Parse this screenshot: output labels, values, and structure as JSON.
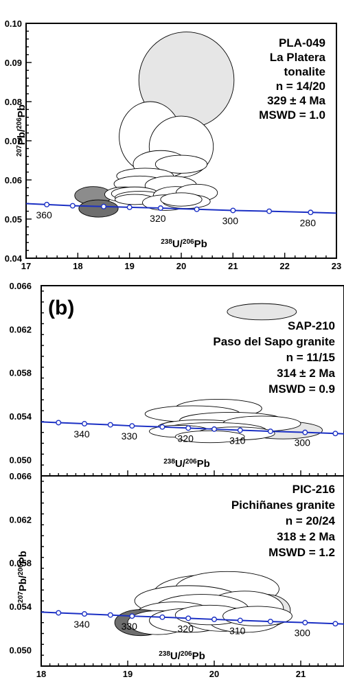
{
  "chart_data": [
    {
      "type": "scatter",
      "id": "top",
      "annotation": [
        "PLA-049",
        "La Platera",
        "tonalite",
        "n = 14/20",
        "329 ± 4 Ma",
        "MSWD = 1.0"
      ],
      "xlabel": "238U/206Pb",
      "ylabel": "207Pb/206Pb",
      "xlim": [
        17,
        23
      ],
      "ylim": [
        0.04,
        0.1
      ],
      "x_ticks": [
        "17",
        "18",
        "19",
        "20",
        "21",
        "22",
        "23"
      ],
      "y_ticks": [
        "0.04",
        "0.05",
        "0.06",
        "0.07",
        "0.08",
        "0.09",
        "0.10"
      ],
      "concordia_color": "#1a2fc4",
      "concordia_points": [
        {
          "x": 17.4,
          "y": 0.0537,
          "label": "360"
        },
        {
          "x": 17.9,
          "y": 0.0534,
          "label": ""
        },
        {
          "x": 18.5,
          "y": 0.0532,
          "label": ""
        },
        {
          "x": 19.0,
          "y": 0.053,
          "label": ""
        },
        {
          "x": 19.6,
          "y": 0.0528,
          "label": "320"
        },
        {
          "x": 20.3,
          "y": 0.0525,
          "label": ""
        },
        {
          "x": 21.0,
          "y": 0.0522,
          "label": "300"
        },
        {
          "x": 21.7,
          "y": 0.052,
          "label": ""
        },
        {
          "x": 22.5,
          "y": 0.0517,
          "label": "280"
        }
      ],
      "ellipses": [
        {
          "x": 20.1,
          "y": 0.0855,
          "rx": 0.92,
          "ry": 0.0123,
          "rot": 0,
          "fill": "#e6e6e6"
        },
        {
          "x": 19.4,
          "y": 0.071,
          "rx": 0.6,
          "ry": 0.009,
          "rot": 0,
          "fill": "#ffffff"
        },
        {
          "x": 20.0,
          "y": 0.0685,
          "rx": 0.62,
          "ry": 0.0078,
          "rot": 0,
          "fill": "#ffffff"
        },
        {
          "x": 19.6,
          "y": 0.064,
          "rx": 0.53,
          "ry": 0.0035,
          "rot": 0,
          "fill": "#ffffff"
        },
        {
          "x": 20.0,
          "y": 0.064,
          "rx": 0.5,
          "ry": 0.0023,
          "rot": 0,
          "fill": "#ffffff"
        },
        {
          "x": 19.3,
          "y": 0.061,
          "rx": 0.55,
          "ry": 0.002,
          "rot": 0,
          "fill": "#ffffff"
        },
        {
          "x": 19.2,
          "y": 0.059,
          "rx": 0.5,
          "ry": 0.002,
          "rot": 0,
          "fill": "#ffffff"
        },
        {
          "x": 19.8,
          "y": 0.0585,
          "rx": 0.5,
          "ry": 0.0025,
          "rot": 0,
          "fill": "#ffffff"
        },
        {
          "x": 18.3,
          "y": 0.056,
          "rx": 0.36,
          "ry": 0.0023,
          "rot": 0,
          "fill": "#8c8c8c"
        },
        {
          "x": 18.4,
          "y": 0.0527,
          "rx": 0.38,
          "ry": 0.0022,
          "rot": 0,
          "fill": "#6e6e6e"
        },
        {
          "x": 18.9,
          "y": 0.0563,
          "rx": 0.38,
          "ry": 0.0019,
          "rot": 0,
          "fill": "#ffffff"
        },
        {
          "x": 19.1,
          "y": 0.0565,
          "rx": 0.45,
          "ry": 0.0017,
          "rot": 0,
          "fill": "#ffffff"
        },
        {
          "x": 19.2,
          "y": 0.0555,
          "rx": 0.48,
          "ry": 0.0016,
          "rot": 0,
          "fill": "#ffffff"
        },
        {
          "x": 19.1,
          "y": 0.055,
          "rx": 0.38,
          "ry": 0.0013,
          "rot": 0,
          "fill": "#ffffff"
        },
        {
          "x": 19.9,
          "y": 0.056,
          "rx": 0.44,
          "ry": 0.0023,
          "rot": 0,
          "fill": "#ffffff"
        },
        {
          "x": 20.3,
          "y": 0.0567,
          "rx": 0.4,
          "ry": 0.0022,
          "rot": 0,
          "fill": "#ffffff"
        },
        {
          "x": 19.7,
          "y": 0.0542,
          "rx": 0.45,
          "ry": 0.002,
          "rot": 0,
          "fill": "#ffffff"
        },
        {
          "x": 20.1,
          "y": 0.0545,
          "rx": 0.46,
          "ry": 0.0018,
          "rot": 0,
          "fill": "#ffffff"
        },
        {
          "x": 20.0,
          "y": 0.055,
          "rx": 0.4,
          "ry": 0.0017,
          "rot": 0,
          "fill": "#ffffff"
        }
      ]
    },
    {
      "type": "scatter",
      "id": "b",
      "panel_letter": "(b)",
      "annotation": [
        "SAP-210",
        "Paso del Sapo granite",
        "n = 11/15",
        "314 ± 2 Ma",
        "MSWD = 0.9"
      ],
      "xlabel": "238U/206Pb",
      "xlim": [
        18,
        21.5
      ],
      "ylim": [
        0.0485,
        0.066
      ],
      "y_ticks": [
        "0.066",
        "0.062",
        "0.058",
        "0.054",
        "0.050"
      ],
      "concordia_color": "#1a2fc4",
      "concordia_points": [
        {
          "x": 18.2,
          "y": 0.0534,
          "label": ""
        },
        {
          "x": 18.5,
          "y": 0.0533,
          "label": "340"
        },
        {
          "x": 18.8,
          "y": 0.0532,
          "label": ""
        },
        {
          "x": 19.05,
          "y": 0.0531,
          "label": "330"
        },
        {
          "x": 19.4,
          "y": 0.053,
          "label": ""
        },
        {
          "x": 19.7,
          "y": 0.0529,
          "label": "320"
        },
        {
          "x": 20.0,
          "y": 0.0528,
          "label": ""
        },
        {
          "x": 20.3,
          "y": 0.0527,
          "label": "310"
        },
        {
          "x": 20.65,
          "y": 0.0526,
          "label": ""
        },
        {
          "x": 21.05,
          "y": 0.0525,
          "label": "300"
        },
        {
          "x": 21.4,
          "y": 0.0524,
          "label": ""
        }
      ],
      "ellipses": [
        {
          "x": 20.55,
          "y": 0.0636,
          "rx": 0.4,
          "ry": 0.00075,
          "rot": 0,
          "fill": "#e6e6e6"
        },
        {
          "x": 20.05,
          "y": 0.0547,
          "rx": 0.5,
          "ry": 0.00085,
          "rot": 0,
          "fill": "#ffffff"
        },
        {
          "x": 19.75,
          "y": 0.0542,
          "rx": 0.55,
          "ry": 0.00075,
          "rot": 0,
          "fill": "#ffffff"
        },
        {
          "x": 20.2,
          "y": 0.0536,
          "rx": 0.6,
          "ry": 0.00075,
          "rot": 0,
          "fill": "#ffffff"
        },
        {
          "x": 19.85,
          "y": 0.053,
          "rx": 0.5,
          "ry": 0.00065,
          "rot": 0,
          "fill": "#ffffff"
        },
        {
          "x": 20.8,
          "y": 0.0527,
          "rx": 0.45,
          "ry": 0.0008,
          "rot": 0,
          "fill": "#e6e6e6"
        },
        {
          "x": 20.55,
          "y": 0.0533,
          "rx": 0.45,
          "ry": 0.0007,
          "rot": 0,
          "fill": "#ffffff"
        },
        {
          "x": 20.0,
          "y": 0.0527,
          "rx": 0.6,
          "ry": 0.0007,
          "rot": 0,
          "fill": "#ffffff"
        },
        {
          "x": 19.6,
          "y": 0.0526,
          "rx": 0.35,
          "ry": 0.00055,
          "rot": 0,
          "fill": "#ffffff"
        },
        {
          "x": 20.25,
          "y": 0.0524,
          "rx": 0.45,
          "ry": 0.0006,
          "rot": 0,
          "fill": "#ffffff"
        },
        {
          "x": 19.95,
          "y": 0.0521,
          "rx": 0.4,
          "ry": 0.00055,
          "rot": 0,
          "fill": "#ffffff"
        }
      ]
    },
    {
      "type": "scatter",
      "id": "c",
      "annotation": [
        "PIC-216",
        "Pichiñanes granite",
        "n = 20/24",
        "318 ± 2 Ma",
        "MSWD = 1.2"
      ],
      "xlabel": "238U/206Pb",
      "ylabel": "207Pb/206Pb",
      "xlim": [
        18,
        21.5
      ],
      "ylim": [
        0.0485,
        0.066
      ],
      "x_ticks": [
        "18",
        "19",
        "20",
        "21"
      ],
      "y_ticks": [
        "0.066",
        "0.062",
        "0.058",
        "0.054",
        "0.050"
      ],
      "concordia_color": "#1a2fc4",
      "concordia_points": [
        {
          "x": 18.2,
          "y": 0.0534,
          "label": ""
        },
        {
          "x": 18.5,
          "y": 0.0533,
          "label": "340"
        },
        {
          "x": 18.8,
          "y": 0.0532,
          "label": ""
        },
        {
          "x": 19.05,
          "y": 0.0531,
          "label": "330"
        },
        {
          "x": 19.4,
          "y": 0.053,
          "label": ""
        },
        {
          "x": 19.7,
          "y": 0.0529,
          "label": "320"
        },
        {
          "x": 20.0,
          "y": 0.0528,
          "label": ""
        },
        {
          "x": 20.3,
          "y": 0.0527,
          "label": "310"
        },
        {
          "x": 20.65,
          "y": 0.0526,
          "label": ""
        },
        {
          "x": 21.05,
          "y": 0.0525,
          "label": "300"
        },
        {
          "x": 21.4,
          "y": 0.0524,
          "label": ""
        }
      ],
      "ellipses": [
        {
          "x": 19.95,
          "y": 0.0552,
          "rx": 0.65,
          "ry": 0.0017,
          "rot": 0,
          "fill": "#ffffff"
        },
        {
          "x": 20.15,
          "y": 0.0556,
          "rx": 0.6,
          "ry": 0.0016,
          "rot": 0,
          "fill": "#ffffff"
        },
        {
          "x": 19.7,
          "y": 0.0545,
          "rx": 0.62,
          "ry": 0.0014,
          "rot": 0,
          "fill": "#ffffff"
        },
        {
          "x": 20.6,
          "y": 0.0536,
          "rx": 0.28,
          "ry": 0.0015,
          "rot": 0,
          "fill": "#e6e6e6"
        },
        {
          "x": 20.35,
          "y": 0.0538,
          "rx": 0.45,
          "ry": 0.0016,
          "rot": 0,
          "fill": "#ffffff"
        },
        {
          "x": 19.85,
          "y": 0.0537,
          "rx": 0.55,
          "ry": 0.0014,
          "rot": 0,
          "fill": "#ffffff"
        },
        {
          "x": 19.55,
          "y": 0.0533,
          "rx": 0.45,
          "ry": 0.0011,
          "rot": 0,
          "fill": "#ffffff"
        },
        {
          "x": 19.15,
          "y": 0.0525,
          "rx": 0.3,
          "ry": 0.0012,
          "rot": 0,
          "fill": "#6e6e6e"
        },
        {
          "x": 19.35,
          "y": 0.0525,
          "rx": 0.35,
          "ry": 0.0011,
          "rot": 0,
          "fill": "#ffffff"
        },
        {
          "x": 19.7,
          "y": 0.0527,
          "rx": 0.45,
          "ry": 0.0011,
          "rot": 0,
          "fill": "#ffffff"
        },
        {
          "x": 20.1,
          "y": 0.0528,
          "rx": 0.42,
          "ry": 0.0011,
          "rot": 0,
          "fill": "#ffffff"
        },
        {
          "x": 20.35,
          "y": 0.0526,
          "rx": 0.4,
          "ry": 0.001,
          "rot": 0,
          "fill": "#ffffff"
        },
        {
          "x": 19.95,
          "y": 0.0532,
          "rx": 0.4,
          "ry": 0.0009,
          "rot": 0,
          "fill": "#ffffff"
        },
        {
          "x": 20.5,
          "y": 0.0531,
          "rx": 0.4,
          "ry": 0.0009,
          "rot": 0,
          "fill": "#ffffff"
        }
      ]
    }
  ]
}
